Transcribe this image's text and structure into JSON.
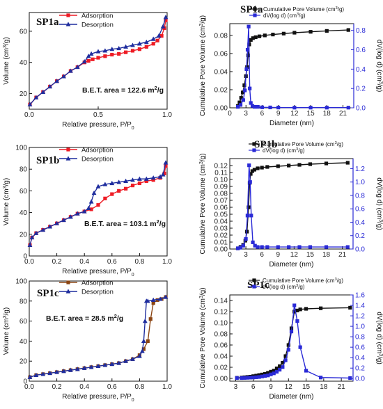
{
  "chart_data": [
    {
      "panel": "SP1a-isotherm",
      "type": "line",
      "title": "SP1a",
      "annotation": "B.E.T. area = 122.6 m²/g",
      "xlabel": "Relative pressure, P/P₀",
      "ylabel": "Volume (cm³/g)",
      "xlim": [
        0,
        1.0
      ],
      "ylim": [
        10,
        72
      ],
      "xticks": [
        "0.0",
        "0.5",
        "1.0"
      ],
      "yticks": [
        20,
        40,
        60
      ],
      "legend_position": "top-center",
      "grid": false,
      "series": [
        {
          "name": "Adsorption",
          "color": "#ee1c25",
          "marker": "square",
          "x": [
            0.005,
            0.05,
            0.1,
            0.15,
            0.2,
            0.25,
            0.3,
            0.35,
            0.4,
            0.43,
            0.46,
            0.5,
            0.55,
            0.6,
            0.65,
            0.7,
            0.75,
            0.8,
            0.85,
            0.9,
            0.93,
            0.96,
            0.98,
            0.99
          ],
          "y": [
            13,
            17.5,
            21,
            24.5,
            28,
            31,
            34.5,
            37,
            40,
            41,
            42,
            43,
            44,
            45,
            45.5,
            46.5,
            47.5,
            48.5,
            50,
            52,
            54,
            57,
            62,
            67
          ]
        },
        {
          "name": "Desorption",
          "color": "#1f2d9e",
          "marker": "triangle",
          "x": [
            0.99,
            0.97,
            0.94,
            0.9,
            0.85,
            0.8,
            0.75,
            0.7,
            0.65,
            0.6,
            0.55,
            0.5,
            0.45,
            0.43,
            0.4,
            0.35,
            0.3,
            0.25,
            0.2,
            0.15,
            0.1,
            0.05,
            0.005
          ],
          "y": [
            69,
            63,
            57,
            55,
            53,
            52,
            51,
            50,
            49,
            48.5,
            47.5,
            47,
            45.5,
            44,
            40.5,
            37,
            34.5,
            31,
            28,
            24.5,
            21,
            17.5,
            13
          ]
        }
      ]
    },
    {
      "panel": "SP1a-psd",
      "type": "line",
      "title": "SP1a",
      "xlabel": "Diameter (nm)",
      "ylabel": "Cumulative Pore Volume (cm³/g)",
      "ylabel_right": "dV(log d) (cm³/g)",
      "xlim": [
        0,
        23
      ],
      "ylim": [
        0,
        0.093
      ],
      "ylim_right": [
        0,
        0.87
      ],
      "xticks": [
        0,
        3,
        6,
        9,
        12,
        15,
        18,
        21
      ],
      "yticks": [
        "0.00",
        "0.02",
        "0.04",
        "0.06",
        "0.08"
      ],
      "yticks_right": [
        "0.0",
        "0.2",
        "0.4",
        "0.6",
        "0.8"
      ],
      "legend_position": "top-right",
      "series": [
        {
          "name": "Cumulative Pore Volume (cm³/g)",
          "axis": "left",
          "color": "#111111",
          "marker": "square",
          "x": [
            1.5,
            1.8,
            2.1,
            2.4,
            2.7,
            3.0,
            3.2,
            3.4,
            3.6,
            3.9,
            4.3,
            4.8,
            5.5,
            6.5,
            8,
            10,
            12,
            15,
            18,
            22
          ],
          "y": [
            0.002,
            0.006,
            0.011,
            0.017,
            0.025,
            0.035,
            0.045,
            0.058,
            0.07,
            0.075,
            0.077,
            0.078,
            0.079,
            0.08,
            0.081,
            0.082,
            0.083,
            0.084,
            0.085,
            0.086
          ]
        },
        {
          "name": "dV(log d) (cm³/g)",
          "axis": "right",
          "color": "#2a2ad6",
          "marker": "square",
          "x": [
            1.5,
            2.0,
            2.5,
            2.8,
            3.1,
            3.3,
            3.5,
            3.7,
            3.9,
            4.2,
            4.6,
            5.2,
            6,
            7.5,
            9,
            12,
            15,
            18,
            22
          ],
          "y": [
            0.01,
            0.03,
            0.08,
            0.18,
            0.4,
            0.6,
            0.84,
            0.2,
            0.05,
            0.02,
            0.01,
            0.01,
            0.005,
            0.004,
            0.003,
            0.002,
            0.002,
            0.002,
            0.002
          ]
        }
      ]
    },
    {
      "panel": "SP1b-isotherm",
      "type": "line",
      "title": "SP1b",
      "annotation": "B.E.T. area = 103.1 m²/g",
      "xlabel": "Relative pressure, P/P₀",
      "ylabel": "Volume (cm³/g)",
      "xlim": [
        0,
        1.0
      ],
      "ylim": [
        0,
        100
      ],
      "xticks": [
        "0.0",
        "0.2",
        "0.4",
        "0.6",
        "0.8",
        "1.0"
      ],
      "yticks": [
        0,
        20,
        40,
        60,
        80,
        100
      ],
      "legend_position": "top-center",
      "series": [
        {
          "name": "Adsorption",
          "color": "#ee1c25",
          "marker": "square",
          "x": [
            0.005,
            0.02,
            0.05,
            0.1,
            0.15,
            0.2,
            0.25,
            0.3,
            0.35,
            0.4,
            0.45,
            0.5,
            0.55,
            0.6,
            0.65,
            0.7,
            0.75,
            0.8,
            0.85,
            0.9,
            0.95,
            0.98,
            0.99
          ],
          "y": [
            10,
            17,
            21,
            24,
            27,
            30,
            33,
            36,
            39,
            41,
            43,
            47,
            53,
            57,
            60,
            62,
            65,
            67,
            69,
            70,
            72,
            76,
            83
          ]
        },
        {
          "name": "Desorption",
          "color": "#1f2d9e",
          "marker": "triangle",
          "x": [
            0.99,
            0.97,
            0.95,
            0.9,
            0.85,
            0.8,
            0.75,
            0.7,
            0.65,
            0.6,
            0.55,
            0.5,
            0.47,
            0.45,
            0.43,
            0.4,
            0.35,
            0.3,
            0.25,
            0.2,
            0.15,
            0.1,
            0.05,
            0.02,
            0.005
          ],
          "y": [
            86,
            75,
            73,
            72,
            71,
            71,
            70,
            69,
            68,
            67,
            66,
            64,
            58,
            50,
            44,
            41,
            39,
            36,
            33,
            30,
            27,
            24,
            21,
            17,
            10
          ]
        }
      ]
    },
    {
      "panel": "SP1b-psd",
      "type": "line",
      "title": "SP1b",
      "xlabel": "Diameter (nm)",
      "ylabel": "Cumulative Pore Volume (cm³/g)",
      "ylabel_right": "dV(log d) (cm³/g)",
      "xlim": [
        0,
        23
      ],
      "ylim": [
        0,
        0.13
      ],
      "ylim_right": [
        0,
        1.35
      ],
      "xticks": [
        0,
        3,
        6,
        9,
        12,
        15,
        18,
        21
      ],
      "yticks": [
        "0.00",
        "0.01",
        "0.02",
        "0.03",
        "0.04",
        "0.05",
        "0.06",
        "0.07",
        "0.08",
        "0.09",
        "0.10",
        "0.11",
        "0.12"
      ],
      "yticks_right": [
        "0.0",
        "0.2",
        "0.4",
        "0.6",
        "0.8",
        "1.0",
        "1.2"
      ],
      "legend_position": "top-right",
      "series": [
        {
          "name": "Cumulative Pore Volume (cm³/g)",
          "axis": "left",
          "color": "#111111",
          "marker": "square",
          "x": [
            1.5,
            2.0,
            2.5,
            2.9,
            3.2,
            3.5,
            3.7,
            3.9,
            4.2,
            4.6,
            5.2,
            6,
            7,
            9,
            11,
            13,
            15,
            18,
            22
          ],
          "y": [
            0.001,
            0.003,
            0.006,
            0.012,
            0.025,
            0.06,
            0.095,
            0.108,
            0.112,
            0.114,
            0.116,
            0.117,
            0.118,
            0.119,
            0.12,
            0.121,
            0.122,
            0.123,
            0.124
          ]
        },
        {
          "name": "dV(log d) (cm³/g)",
          "axis": "right",
          "color": "#2a2ad6",
          "marker": "square",
          "x": [
            1.5,
            2.0,
            2.5,
            3.0,
            3.3,
            3.6,
            3.8,
            4.0,
            4.3,
            4.7,
            5.2,
            6,
            7,
            9,
            11,
            13,
            15,
            18,
            22
          ],
          "y": [
            0.01,
            0.02,
            0.05,
            0.15,
            0.5,
            1.25,
            1.0,
            0.5,
            0.1,
            0.05,
            0.03,
            0.03,
            0.03,
            0.03,
            0.03,
            0.03,
            0.03,
            0.03,
            0.03
          ]
        }
      ]
    },
    {
      "panel": "SP1c-isotherm",
      "type": "line",
      "title": "SP1c",
      "annotation": "B.E.T. area = 28.5 m²/g",
      "xlabel": "Relative pressure, P/P₀",
      "ylabel": "Volume (cm³/g)",
      "xlim": [
        0,
        1.0
      ],
      "ylim": [
        0,
        100
      ],
      "xticks": [
        "0.0",
        "0.2",
        "0.4",
        "0.6",
        "0.8",
        "1.0"
      ],
      "yticks": [
        0,
        20,
        40,
        60,
        80,
        100
      ],
      "legend_position": "top-center",
      "series": [
        {
          "name": "Adsorption",
          "color": "#8b4513",
          "marker": "square",
          "x": [
            0.005,
            0.05,
            0.1,
            0.15,
            0.2,
            0.25,
            0.3,
            0.35,
            0.4,
            0.45,
            0.5,
            0.55,
            0.6,
            0.65,
            0.7,
            0.75,
            0.8,
            0.83,
            0.86,
            0.88,
            0.9,
            0.93,
            0.96,
            0.99
          ],
          "y": [
            4,
            6,
            7,
            8,
            9,
            10,
            11,
            12,
            13,
            14,
            15,
            16,
            17,
            18,
            20,
            22,
            26,
            32,
            40,
            62,
            78,
            81,
            82,
            84
          ]
        },
        {
          "name": "Desorption",
          "color": "#1f2d9e",
          "marker": "triangle",
          "x": [
            0.99,
            0.95,
            0.9,
            0.86,
            0.85,
            0.84,
            0.83,
            0.82,
            0.8,
            0.75,
            0.7,
            0.65,
            0.6,
            0.55,
            0.5,
            0.45,
            0.4,
            0.35,
            0.3,
            0.25,
            0.2,
            0.15,
            0.1,
            0.05,
            0.005
          ],
          "y": [
            84,
            82,
            81,
            80,
            80,
            60,
            40,
            30,
            25,
            22,
            20,
            18,
            17,
            16,
            15,
            14,
            13,
            12,
            11,
            10,
            9,
            8,
            7,
            6,
            4
          ]
        }
      ]
    },
    {
      "panel": "SP1c-psd",
      "type": "line",
      "title": "SP1c",
      "xlabel": "Diameter (nm)",
      "ylabel": "Cumulative Pore Volume (cm³/g)",
      "ylabel_right": "dV(log d) (cm³/g)",
      "xlim": [
        2,
        23
      ],
      "ylim": [
        -0.005,
        0.15
      ],
      "ylim_right": [
        -0.05,
        1.6
      ],
      "xticks": [
        3,
        6,
        9,
        12,
        15,
        18,
        21
      ],
      "yticks": [
        "0.00",
        "0.02",
        "0.04",
        "0.06",
        "0.08",
        "0.10",
        "0.12",
        "0.14"
      ],
      "yticks_right": [
        "0.0",
        "0.2",
        "0.4",
        "0.6",
        "0.8",
        "1.0",
        "1.2",
        "1.4",
        "1.6"
      ],
      "legend_position": "top-right",
      "series": [
        {
          "name": "Cumulative Pore Volume (cm³/g)",
          "axis": "left",
          "color": "#111111",
          "marker": "square",
          "x": [
            3.2,
            4,
            4.5,
            5,
            5.5,
            6,
            6.5,
            7,
            7.5,
            8,
            8.5,
            9,
            9.5,
            10,
            10.5,
            11,
            11.5,
            12,
            12.5,
            13,
            13.5,
            14,
            15,
            17.5,
            22.5
          ],
          "y": [
            0.001,
            0.0015,
            0.002,
            0.0025,
            0.003,
            0.004,
            0.005,
            0.006,
            0.007,
            0.008,
            0.01,
            0.012,
            0.014,
            0.018,
            0.022,
            0.028,
            0.04,
            0.06,
            0.09,
            0.12,
            0.122,
            0.124,
            0.125,
            0.126,
            0.127
          ]
        },
        {
          "name": "dV(log d) (cm³/g)",
          "axis": "right",
          "color": "#2a2ad6",
          "marker": "square",
          "x": [
            3.2,
            4,
            4.5,
            5,
            5.5,
            6,
            6.5,
            7,
            7.5,
            8,
            8.5,
            9,
            9.5,
            10,
            10.5,
            11,
            11.5,
            12,
            12.5,
            13,
            13.5,
            14,
            15,
            17.5,
            22.5
          ],
          "y": [
            0.01,
            0.01,
            0.012,
            0.015,
            0.018,
            0.02,
            0.025,
            0.03,
            0.04,
            0.05,
            0.06,
            0.08,
            0.1,
            0.13,
            0.17,
            0.22,
            0.35,
            0.55,
            0.9,
            1.4,
            1.1,
            0.6,
            0.15,
            0.02,
            0.01
          ]
        }
      ]
    }
  ]
}
